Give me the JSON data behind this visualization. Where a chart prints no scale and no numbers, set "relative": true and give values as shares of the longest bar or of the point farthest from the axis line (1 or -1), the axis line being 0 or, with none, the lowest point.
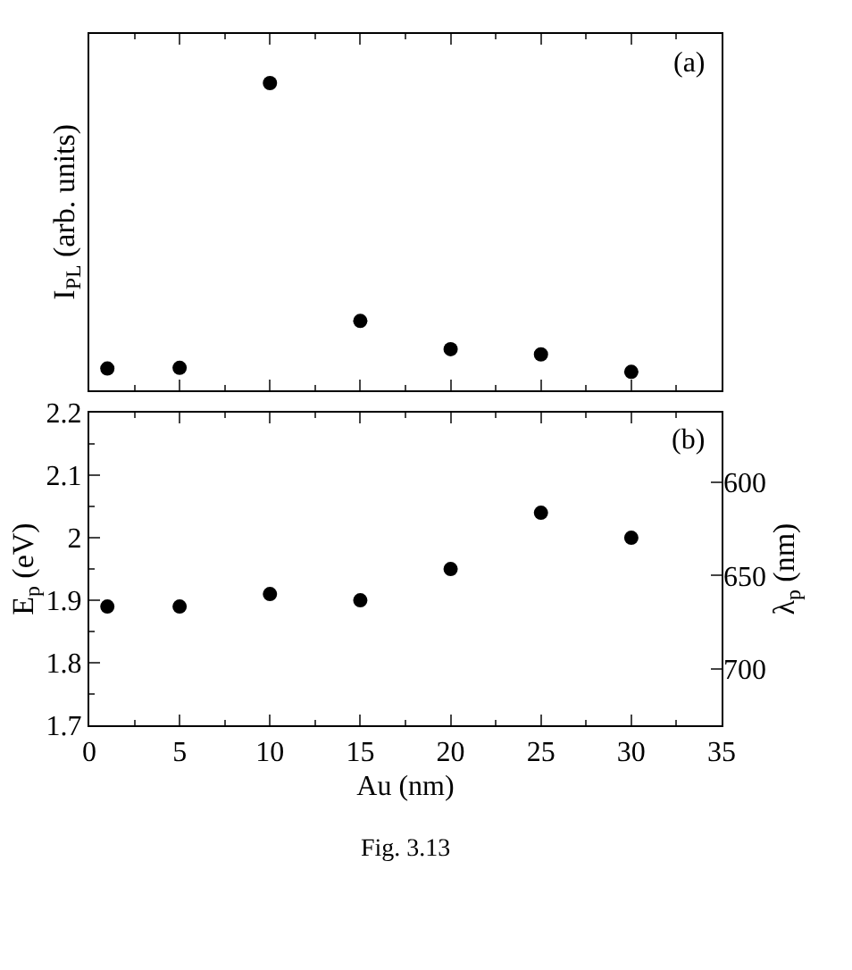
{
  "chart_data": [
    {
      "type": "scatter",
      "relative": true,
      "ylabel": "I$_{PL}$ (arb. units)",
      "annotations": [
        "(a)"
      ],
      "x": [
        1,
        5,
        10,
        15,
        20,
        25,
        30
      ],
      "xlim": [
        0,
        35
      ],
      "xticks": [
        0,
        5,
        10,
        15,
        20,
        25,
        30,
        35
      ],
      "tick_labels": false,
      "series": [
        {
          "color": "#000000",
          "values": [
            0.07,
            0.072,
            1,
            0.225,
            0.133,
            0.116,
            0.059
          ]
        }
      ],
      "marker": "circle"
    },
    {
      "type": "scatter",
      "xlabel": "Au (nm)",
      "ylabel": "E$_{p}$ (eV)",
      "y2label": "λ$_{p}$ (nm)",
      "annotations": [
        "(b)",
        "Fig. 3.13"
      ],
      "x": [
        1,
        5,
        10,
        15,
        20,
        25,
        30
      ],
      "xlim": [
        0,
        35
      ],
      "xticks": [
        0,
        5,
        10,
        15,
        20,
        25,
        30,
        35
      ],
      "ylim": [
        1.7,
        2.2
      ],
      "yticks": [
        1.7,
        1.8,
        1.9,
        {
          "value": 2.0,
          "label": "2"
        },
        2.1,
        2.2
      ],
      "y2lim": [
        730,
        563
      ],
      "y2ticks": [
        600,
        650,
        700
      ],
      "series": [
        {
          "color": "#000000",
          "values": [
            1.89,
            1.89,
            1.91,
            1.9,
            1.95,
            2.04,
            2.0
          ]
        }
      ],
      "marker": "circle"
    }
  ]
}
